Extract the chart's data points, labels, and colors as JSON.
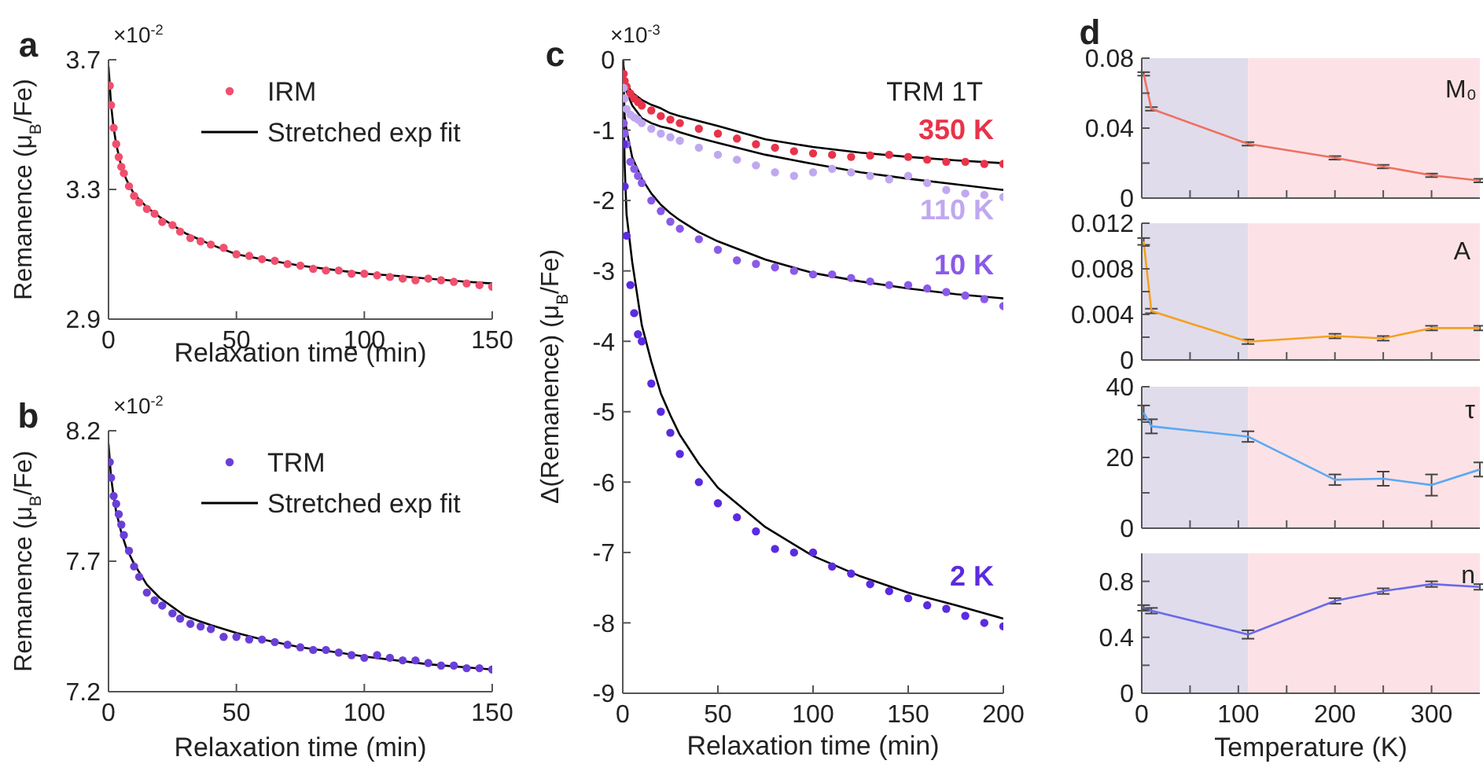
{
  "chart_data": [
    {
      "type": "scatter",
      "annotations": [
        "a",
        "×10$^{-2}$"
      ],
      "xlabel": "Relaxation time (min)",
      "ylabel": "Remanence (μ$_{B}$/Fe)",
      "xlim": [
        0,
        150
      ],
      "xticks": [
        0,
        50,
        100,
        150
      ],
      "ylim": [
        2.9,
        3.7
      ],
      "yticks": [
        2.9,
        3.3,
        3.7
      ],
      "legend": "top right",
      "series": [
        {
          "name": "IRM",
          "type": "scatter",
          "marker": "circle",
          "color": "#f0506e",
          "x": [
            0.5,
            1,
            2,
            3,
            4,
            5,
            6,
            8,
            10,
            12,
            15,
            18,
            21,
            25,
            28,
            32,
            36,
            40,
            45,
            50,
            55,
            60,
            65,
            70,
            75,
            80,
            85,
            90,
            95,
            100,
            105,
            110,
            115,
            120,
            125,
            130,
            135,
            140,
            145,
            150
          ],
          "values": [
            3.62,
            3.56,
            3.49,
            3.44,
            3.4,
            3.37,
            3.35,
            3.31,
            3.28,
            3.26,
            3.24,
            3.225,
            3.2,
            3.19,
            3.17,
            3.15,
            3.14,
            3.13,
            3.12,
            3.1,
            3.095,
            3.085,
            3.08,
            3.07,
            3.065,
            3.055,
            3.05,
            3.05,
            3.04,
            3.04,
            3.035,
            3.03,
            3.025,
            3.02,
            3.025,
            3.02,
            3.015,
            3.01,
            3.005,
            3.0
          ]
        },
        {
          "name": "Stretched exp fit",
          "type": "line",
          "color": "#000000",
          "x": [
            0,
            1,
            2,
            3,
            5,
            7,
            10,
            15,
            20,
            25,
            30,
            40,
            50,
            60,
            75,
            90,
            100,
            110,
            125,
            140,
            150
          ],
          "values": [
            3.68,
            3.56,
            3.49,
            3.44,
            3.37,
            3.33,
            3.285,
            3.245,
            3.215,
            3.19,
            3.165,
            3.13,
            3.1,
            3.085,
            3.065,
            3.05,
            3.04,
            3.035,
            3.025,
            3.015,
            3.01
          ]
        }
      ]
    },
    {
      "type": "scatter",
      "annotations": [
        "b",
        "×10$^{-2}$"
      ],
      "xlabel": "Relaxation time (min)",
      "ylabel": "Remanence (μ$_{B}$/Fe)",
      "xlim": [
        0,
        150
      ],
      "xticks": [
        0,
        50,
        100,
        150
      ],
      "ylim": [
        7.2,
        8.2
      ],
      "yticks": [
        7.2,
        7.7,
        8.2
      ],
      "legend": "top right",
      "series": [
        {
          "name": "TRM",
          "type": "scatter",
          "marker": "circle",
          "color": "#6a3fd8",
          "x": [
            0.5,
            1,
            2,
            3,
            4,
            5,
            6,
            8,
            10,
            12,
            15,
            18,
            21,
            25,
            28,
            32,
            36,
            40,
            45,
            50,
            55,
            60,
            65,
            70,
            75,
            80,
            85,
            90,
            95,
            100,
            105,
            110,
            115,
            120,
            125,
            130,
            135,
            140,
            145,
            150
          ],
          "values": [
            8.08,
            8.02,
            7.95,
            7.92,
            7.88,
            7.84,
            7.8,
            7.74,
            7.68,
            7.64,
            7.58,
            7.55,
            7.53,
            7.5,
            7.48,
            7.46,
            7.45,
            7.44,
            7.41,
            7.41,
            7.4,
            7.4,
            7.39,
            7.38,
            7.37,
            7.36,
            7.36,
            7.35,
            7.34,
            7.33,
            7.34,
            7.33,
            7.32,
            7.32,
            7.31,
            7.3,
            7.3,
            7.29,
            7.29,
            7.285
          ]
        },
        {
          "name": "Stretched exp fit",
          "type": "line",
          "color": "#000000",
          "x": [
            0,
            1,
            2,
            3,
            5,
            7,
            10,
            15,
            20,
            30,
            40,
            50,
            60,
            75,
            90,
            100,
            125,
            150
          ],
          "values": [
            8.15,
            8.02,
            7.95,
            7.89,
            7.81,
            7.75,
            7.69,
            7.61,
            7.56,
            7.49,
            7.455,
            7.425,
            7.4,
            7.37,
            7.35,
            7.335,
            7.305,
            7.285
          ]
        }
      ]
    },
    {
      "type": "scatter",
      "annotations": [
        "c",
        "×10$^{-3}$",
        "TRM 1T"
      ],
      "xlabel": "Relaxation time (min)",
      "ylabel": "Δ(Remanence) (μ$_{B}$/Fe)",
      "xlim": [
        0,
        200
      ],
      "xticks": [
        0,
        50,
        100,
        150,
        200
      ],
      "ylim": [
        -9,
        0
      ],
      "yticks": [
        -9,
        -8,
        -7,
        -6,
        -5,
        -4,
        -3,
        -2,
        -1,
        0
      ],
      "series": [
        {
          "name": "350 K",
          "type": "scatter",
          "marker": "circle",
          "color": "#e8334a",
          "x": [
            0.5,
            1,
            2,
            4,
            6,
            8,
            10,
            15,
            20,
            25,
            30,
            40,
            50,
            60,
            70,
            80,
            90,
            100,
            110,
            120,
            130,
            140,
            150,
            160,
            170,
            180,
            190,
            200
          ],
          "values": [
            -0.2,
            -0.3,
            -0.38,
            -0.48,
            -0.55,
            -0.6,
            -0.65,
            -0.72,
            -0.8,
            -0.85,
            -0.9,
            -0.98,
            -1.05,
            -1.12,
            -1.2,
            -1.25,
            -1.3,
            -1.33,
            -1.35,
            -1.38,
            -1.36,
            -1.35,
            -1.38,
            -1.42,
            -1.45,
            -1.45,
            -1.48,
            -1.48
          ]
        },
        {
          "name": "110 K",
          "type": "scatter",
          "marker": "circle",
          "color": "#c0a8f0",
          "x": [
            0.5,
            1,
            2,
            4,
            6,
            8,
            10,
            15,
            20,
            25,
            30,
            40,
            50,
            60,
            70,
            80,
            90,
            100,
            110,
            120,
            130,
            140,
            150,
            160,
            170,
            180,
            190,
            200
          ],
          "values": [
            -0.4,
            -0.55,
            -0.7,
            -0.78,
            -0.82,
            -0.85,
            -0.9,
            -0.98,
            -1.05,
            -1.1,
            -1.15,
            -1.25,
            -1.35,
            -1.42,
            -1.5,
            -1.6,
            -1.65,
            -1.6,
            -1.55,
            -1.6,
            -1.65,
            -1.7,
            -1.65,
            -1.75,
            -1.85,
            -1.9,
            -1.92,
            -1.95
          ]
        },
        {
          "name": "10 K",
          "type": "scatter",
          "marker": "circle",
          "color": "#8a5ae8",
          "x": [
            0.5,
            1,
            2,
            4,
            6,
            8,
            10,
            15,
            20,
            25,
            30,
            40,
            50,
            60,
            70,
            80,
            90,
            100,
            110,
            120,
            130,
            140,
            150,
            160,
            170,
            180,
            190,
            200
          ],
          "values": [
            -0.9,
            -1.05,
            -1.2,
            -1.45,
            -1.55,
            -1.65,
            -1.75,
            -2.0,
            -2.15,
            -2.3,
            -2.4,
            -2.55,
            -2.7,
            -2.85,
            -2.9,
            -2.95,
            -3.0,
            -3.05,
            -3.05,
            -3.1,
            -3.15,
            -3.2,
            -3.2,
            -3.25,
            -3.3,
            -3.35,
            -3.4,
            -3.5
          ]
        },
        {
          "name": "2 K",
          "type": "scatter",
          "marker": "circle",
          "color": "#5b2be0",
          "x": [
            0.5,
            1,
            2,
            4,
            6,
            8,
            10,
            15,
            20,
            25,
            30,
            40,
            50,
            60,
            70,
            80,
            90,
            100,
            110,
            120,
            130,
            140,
            150,
            160,
            170,
            180,
            190,
            200
          ],
          "values": [
            -1.2,
            -1.8,
            -2.5,
            -3.2,
            -3.6,
            -3.9,
            -4.0,
            -4.6,
            -5.0,
            -5.3,
            -5.6,
            -6.0,
            -6.3,
            -6.5,
            -6.7,
            -6.95,
            -7.0,
            -7.0,
            -7.2,
            -7.3,
            -7.45,
            -7.55,
            -7.65,
            -7.75,
            -7.8,
            -7.9,
            -8.0,
            -8.05
          ]
        },
        {
          "type": "line",
          "color": "#000000",
          "x": [
            0,
            1,
            2,
            5,
            10,
            15,
            20,
            25,
            30,
            40,
            50,
            75,
            100,
            125,
            150,
            175,
            200
          ],
          "values": [
            0,
            -0.25,
            -0.35,
            -0.47,
            -0.57,
            -0.64,
            -0.69,
            -0.76,
            -0.8,
            -0.87,
            -0.94,
            -1.13,
            -1.24,
            -1.32,
            -1.38,
            -1.43,
            -1.47
          ]
        },
        {
          "type": "line",
          "color": "#000000",
          "x": [
            0,
            1,
            2,
            5,
            10,
            15,
            20,
            25,
            30,
            40,
            50,
            75,
            100,
            125,
            150,
            175,
            200
          ],
          "values": [
            0,
            -0.35,
            -0.45,
            -0.65,
            -0.83,
            -0.9,
            -0.95,
            -0.98,
            -1.03,
            -1.11,
            -1.18,
            -1.35,
            -1.48,
            -1.6,
            -1.69,
            -1.77,
            -1.85
          ]
        },
        {
          "type": "line",
          "color": "#000000",
          "x": [
            0,
            1,
            2,
            5,
            10,
            15,
            20,
            25,
            30,
            40,
            50,
            75,
            100,
            125,
            150,
            175,
            200
          ],
          "values": [
            0,
            -0.8,
            -1.0,
            -1.39,
            -1.69,
            -1.9,
            -2.06,
            -2.18,
            -2.28,
            -2.45,
            -2.58,
            -2.84,
            -3.03,
            -3.15,
            -3.25,
            -3.33,
            -3.39
          ]
        },
        {
          "type": "line",
          "color": "#000000",
          "x": [
            0,
            1,
            2,
            5,
            10,
            15,
            20,
            25,
            30,
            40,
            50,
            75,
            100,
            125,
            150,
            175,
            200
          ],
          "values": [
            0,
            -1.5,
            -2.2,
            -2.88,
            -3.77,
            -4.29,
            -4.74,
            -5.05,
            -5.33,
            -5.74,
            -6.08,
            -6.64,
            -7.05,
            -7.34,
            -7.57,
            -7.75,
            -7.94
          ]
        }
      ]
    },
    {
      "type": "line",
      "annotations": [
        "d",
        "M₀"
      ],
      "tick_labels": "y",
      "marker": "none",
      "xlim": [
        0,
        350
      ],
      "xticks": [
        0,
        {
          "value": 50,
          "label": null
        },
        100,
        {
          "value": 150,
          "label": null
        },
        200,
        {
          "value": 250,
          "label": null
        },
        300
      ],
      "ylim": [
        0,
        0.08
      ],
      "yticks": [
        0,
        {
          "value": 0.02,
          "label": null
        },
        0.04,
        {
          "value": 0.06,
          "label": null
        },
        0.08
      ],
      "bands": [
        {
          "axis": "x",
          "from": 0,
          "to": 110,
          "color": "#e0dcec"
        },
        {
          "axis": "x",
          "from": 110,
          "to": 350,
          "color": "#fce2e6"
        }
      ],
      "x": [
        2,
        10,
        110,
        200,
        250,
        300,
        350
      ],
      "series": [
        {
          "color": "#f07060",
          "values": [
            0.071,
            0.051,
            0.031,
            0.023,
            0.018,
            0.013,
            0.01
          ],
          "errors": [
            0.001,
            0.001,
            0.001,
            0.001,
            0.001,
            0.001,
            0.001
          ]
        }
      ]
    },
    {
      "type": "line",
      "annotations": [
        "A"
      ],
      "tick_labels": "y",
      "marker": "none",
      "xlim": [
        0,
        350
      ],
      "xticks": [
        0,
        {
          "value": 50,
          "label": null
        },
        100,
        {
          "value": 150,
          "label": null
        },
        200,
        {
          "value": 250,
          "label": null
        },
        300
      ],
      "ylim": [
        0,
        0.012
      ],
      "yticks": [
        0,
        {
          "value": 0.002,
          "label": null
        },
        0.004,
        {
          "value": 0.006,
          "label": null
        },
        0.008,
        {
          "value": 0.01,
          "label": null
        },
        0.012
      ],
      "bands": [
        {
          "axis": "x",
          "from": 0,
          "to": 110,
          "color": "#e0dcec"
        },
        {
          "axis": "x",
          "from": 110,
          "to": 350,
          "color": "#fce2e6"
        }
      ],
      "x": [
        2,
        10,
        110,
        200,
        250,
        300,
        350
      ],
      "series": [
        {
          "color": "#f5a020",
          "values": [
            0.0104,
            0.0043,
            0.0016,
            0.0021,
            0.0019,
            0.0028,
            0.0028
          ],
          "errors": [
            0.0003,
            0.0002,
            0.0002,
            0.0002,
            0.0002,
            0.0002,
            0.0002
          ]
        }
      ]
    },
    {
      "type": "line",
      "annotations": [
        "τ"
      ],
      "tick_labels": "y",
      "marker": "none",
      "xlim": [
        0,
        350
      ],
      "xticks": [
        0,
        {
          "value": 50,
          "label": null
        },
        100,
        {
          "value": 150,
          "label": null
        },
        200,
        {
          "value": 250,
          "label": null
        },
        300
      ],
      "ylim": [
        0,
        40
      ],
      "yticks": [
        0,
        {
          "value": 10,
          "label": null
        },
        20,
        {
          "value": 30,
          "label": null
        },
        40
      ],
      "bands": [
        {
          "axis": "x",
          "from": 0,
          "to": 110,
          "color": "#e0dcec"
        },
        {
          "axis": "x",
          "from": 110,
          "to": 350,
          "color": "#fce2e6"
        }
      ],
      "x": [
        2,
        10,
        110,
        200,
        250,
        300,
        350
      ],
      "series": [
        {
          "color": "#5aa8f5",
          "values": [
            32.7,
            28.8,
            25.9,
            13.7,
            14.0,
            12.2,
            16.6
          ],
          "errors": [
            2,
            2,
            1.5,
            1.5,
            2,
            3,
            2
          ]
        }
      ]
    },
    {
      "type": "line",
      "annotations": [
        "n"
      ],
      "xlabel": "Temperature (K)",
      "marker": "none",
      "xlim": [
        0,
        350
      ],
      "xticks": [
        0,
        {
          "value": 50,
          "label": null
        },
        100,
        {
          "value": 150,
          "label": null
        },
        200,
        {
          "value": 250,
          "label": null
        },
        300
      ],
      "ylim": [
        0,
        1
      ],
      "yticks": [
        0,
        {
          "value": 0.2,
          "label": null
        },
        0.4,
        {
          "value": 0.6,
          "label": null
        },
        0.8
      ],
      "bands": [
        {
          "axis": "x",
          "from": 0,
          "to": 110,
          "color": "#e0dcec"
        },
        {
          "axis": "x",
          "from": 110,
          "to": 350,
          "color": "#fce2e6"
        }
      ],
      "x": [
        2,
        10,
        110,
        200,
        250,
        300,
        350
      ],
      "series": [
        {
          "color": "#6a6ae8",
          "values": [
            0.61,
            0.59,
            0.42,
            0.66,
            0.73,
            0.78,
            0.76
          ],
          "errors": [
            0.02,
            0.02,
            0.03,
            0.02,
            0.02,
            0.02,
            0.02
          ]
        }
      ]
    }
  ]
}
